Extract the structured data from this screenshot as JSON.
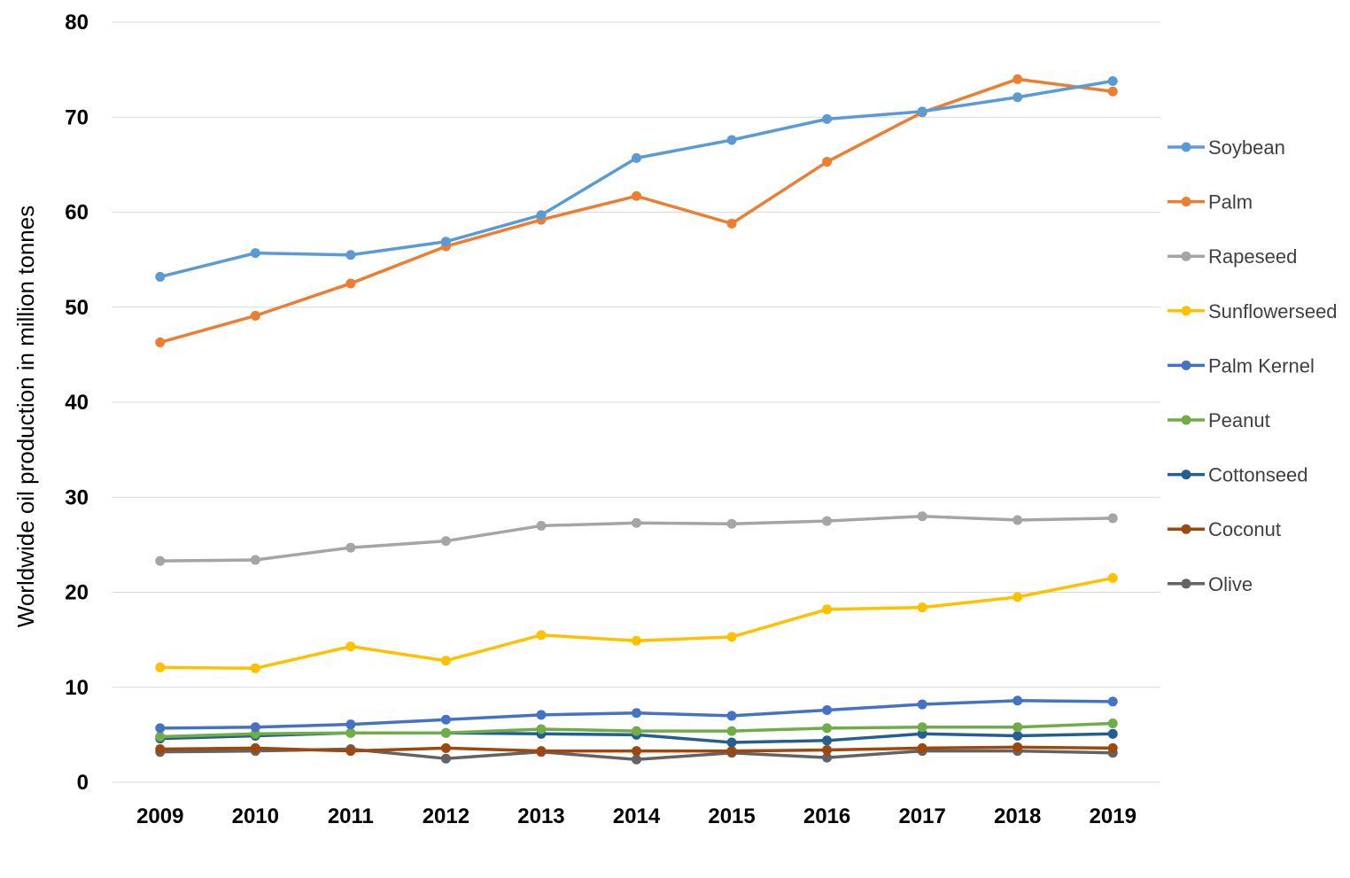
{
  "chart_data": {
    "type": "line",
    "title": "",
    "xlabel": "",
    "ylabel": "Worldwide oil production in million tonnes",
    "ylim": [
      0,
      80
    ],
    "yticks": [
      0,
      10,
      20,
      30,
      40,
      50,
      60,
      70,
      80
    ],
    "grid": true,
    "legend_position": "right",
    "categories": [
      "2009",
      "2010",
      "2011",
      "2012",
      "2013",
      "2014",
      "2015",
      "2016",
      "2017",
      "2018",
      "2019"
    ],
    "series": [
      {
        "name": "Soybean",
        "color": "#5b9bd5",
        "values": [
          53.2,
          55.7,
          55.5,
          56.9,
          59.7,
          65.7,
          67.6,
          69.8,
          70.6,
          72.1,
          73.8
        ]
      },
      {
        "name": "Palm",
        "color": "#ed7d31",
        "values": [
          46.3,
          49.1,
          52.5,
          56.4,
          59.2,
          61.7,
          58.8,
          65.3,
          70.5,
          74.0,
          72.7
        ]
      },
      {
        "name": "Rapeseed",
        "color": "#a5a5a5",
        "values": [
          23.3,
          23.4,
          24.7,
          25.4,
          27.0,
          27.3,
          27.2,
          27.5,
          28.0,
          27.6,
          27.8
        ]
      },
      {
        "name": "Sunflowerseed",
        "color": "#ffc000",
        "values": [
          12.1,
          12.0,
          14.3,
          12.8,
          15.5,
          14.9,
          15.3,
          18.2,
          18.4,
          19.5,
          21.5
        ]
      },
      {
        "name": "Palm Kernel",
        "color": "#4472c4",
        "values": [
          5.7,
          5.8,
          6.1,
          6.6,
          7.1,
          7.3,
          7.0,
          7.6,
          8.2,
          8.6,
          8.5
        ]
      },
      {
        "name": "Peanut",
        "color": "#70ad47",
        "values": [
          4.8,
          5.1,
          5.2,
          5.2,
          5.6,
          5.4,
          5.4,
          5.7,
          5.8,
          5.8,
          6.2
        ]
      },
      {
        "name": "Cottonseed",
        "color": "#255e91",
        "values": [
          4.6,
          4.9,
          5.2,
          5.2,
          5.1,
          5.0,
          4.2,
          4.4,
          5.1,
          4.9,
          5.1
        ]
      },
      {
        "name": "Coconut",
        "color": "#9e480e",
        "values": [
          3.5,
          3.6,
          3.3,
          3.6,
          3.3,
          3.3,
          3.3,
          3.4,
          3.6,
          3.7,
          3.6
        ]
      },
      {
        "name": "Olive",
        "color": "#636363",
        "values": [
          3.2,
          3.3,
          3.5,
          2.5,
          3.2,
          2.4,
          3.1,
          2.6,
          3.3,
          3.3,
          3.1
        ]
      }
    ]
  }
}
